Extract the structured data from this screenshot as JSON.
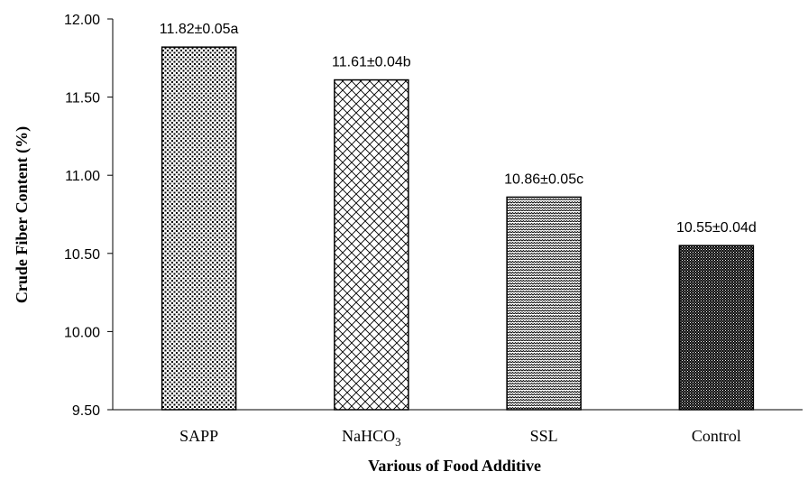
{
  "chart_data": {
    "type": "bar",
    "title": "",
    "xlabel": "Various of Food  Additive",
    "ylabel": "Crude  Fiber  Content  (%)",
    "ylim": [
      9.5,
      12.0
    ],
    "yticks": [
      9.5,
      10.0,
      10.5,
      11.0,
      11.5,
      12.0
    ],
    "ytick_labels": [
      "9.50",
      "10.00",
      "10.50",
      "11.00",
      "11.50",
      "12.00"
    ],
    "grid": false,
    "legend": "none",
    "categories": [
      {
        "text": "SAPP"
      },
      {
        "text": "NaHCO",
        "sub": "3"
      },
      {
        "text": "SSL"
      },
      {
        "text": "Control"
      }
    ],
    "values": [
      11.82,
      11.61,
      10.86,
      10.55
    ],
    "data_labels": [
      "11.82±0.05a",
      "11.61±0.04b",
      "10.86±0.05c",
      "10.55±0.04d"
    ],
    "patterns": [
      "dots",
      "crosshatch",
      "zigzag",
      "dense-dots"
    ],
    "colors": {
      "bar_stroke": "#000000",
      "pattern_ink": "#000000",
      "background": "#ffffff"
    }
  }
}
